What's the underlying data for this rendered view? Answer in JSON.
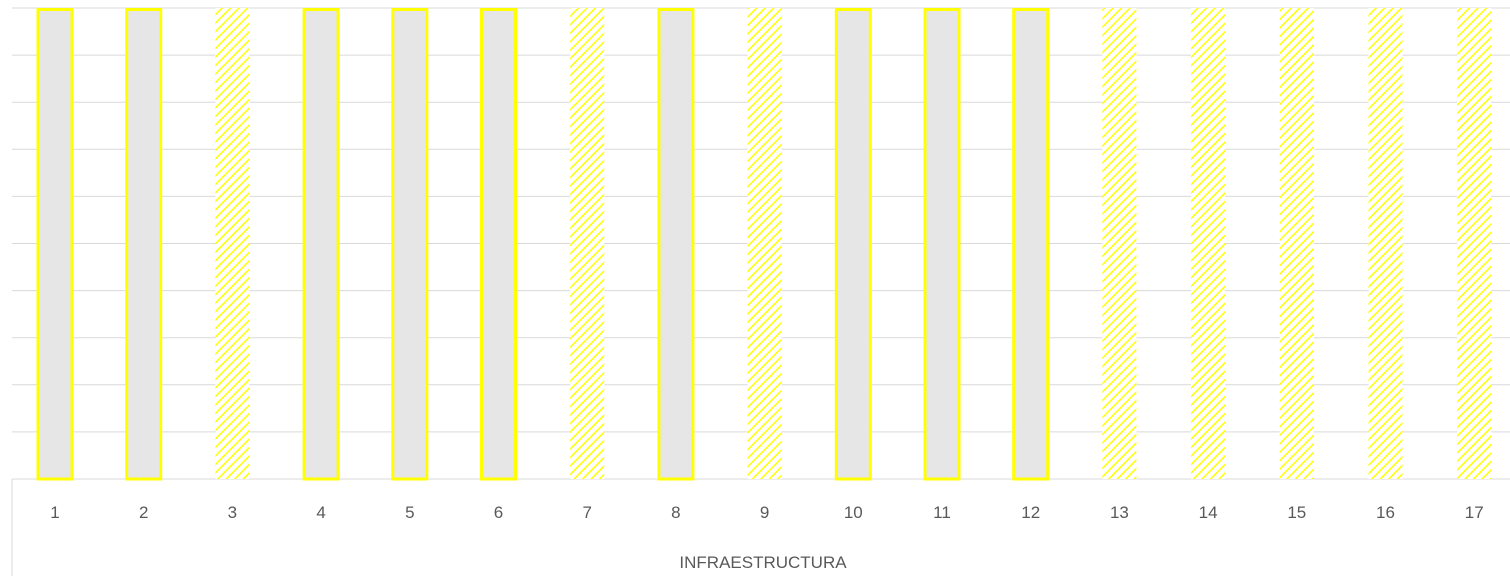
{
  "chart_data": {
    "type": "bar",
    "xlabel": "INFRAESTRUCTURA",
    "ylabel": "",
    "categories": [
      "1",
      "2",
      "3",
      "4",
      "5",
      "6",
      "7",
      "8",
      "9",
      "10",
      "11",
      "12",
      "13",
      "14",
      "15",
      "16",
      "17"
    ],
    "series": [
      {
        "values": [
          1,
          1,
          0,
          1,
          1,
          1,
          0,
          1,
          0,
          1,
          1,
          1,
          0,
          0,
          0,
          0,
          0
        ],
        "fill": "#e6e6e6",
        "outline": "#ffff00"
      },
      {
        "values": [
          0,
          0,
          1,
          0,
          0,
          0,
          1,
          0,
          1,
          0,
          0,
          0,
          1,
          1,
          1,
          1,
          1
        ],
        "fill": "hatched",
        "outline": "#ffff00"
      }
    ],
    "ylim": [
      0,
      1
    ],
    "grid": true,
    "legend": "none",
    "colors": {
      "outline": "#ffff00",
      "solid_fill": "#e6e6e6",
      "hatch_stripe": "#ffff00",
      "hatch_background": "#ffffff",
      "gridline": "#d9d9d9",
      "axis_frame": "#d9d9d9",
      "text": "#595959"
    }
  }
}
